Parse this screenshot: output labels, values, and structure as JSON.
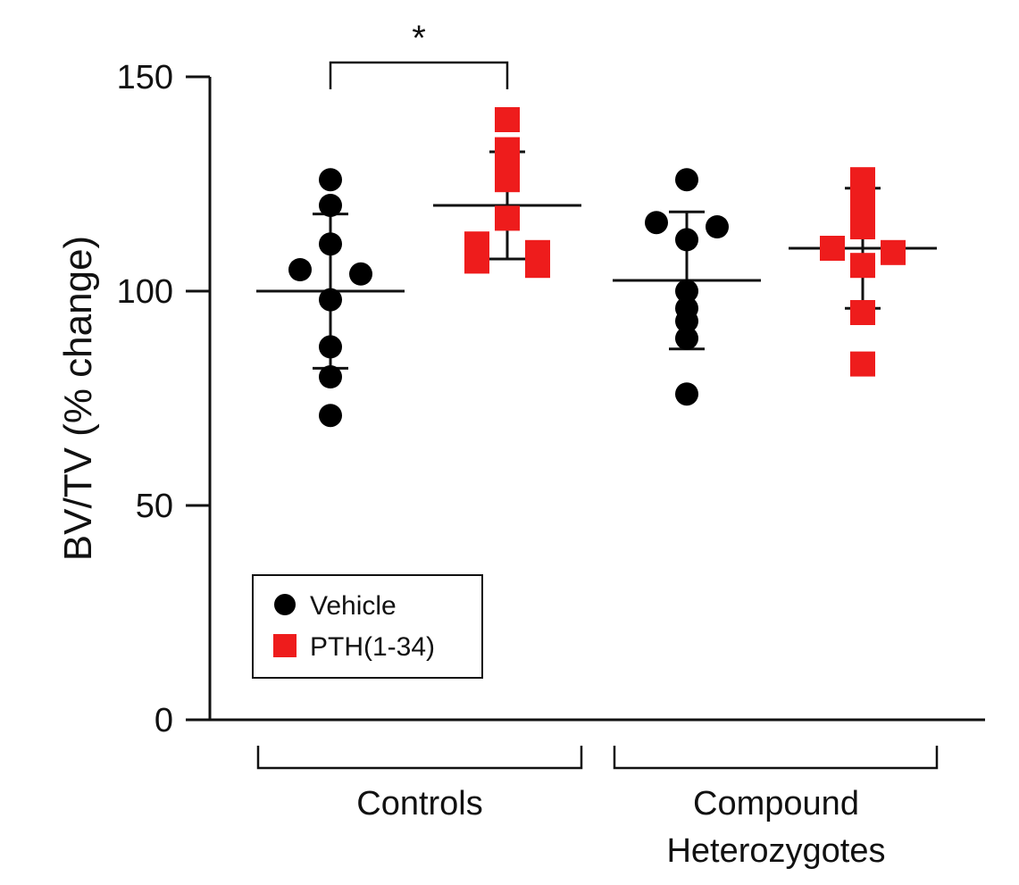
{
  "chart_data": {
    "type": "scatter",
    "title": "",
    "xlabel": "",
    "ylabel": "BV/TV (% change)",
    "ylim": [
      0,
      150
    ],
    "yticks": [
      0,
      50,
      100,
      150
    ],
    "grid": false,
    "legend_position": "bottom-left",
    "groups": [
      {
        "name": "Controls",
        "label": "Controls"
      },
      {
        "name": "Compound Heterozygotes",
        "label": "Compound Heterozygotes",
        "label_lines": [
          "Compound",
          "Heterozygotes"
        ]
      }
    ],
    "series": [
      {
        "name": "Vehicle",
        "marker": "circle",
        "color": "#000000",
        "by_group": [
          {
            "group": "Controls",
            "values": [
              126,
              120,
              111,
              105,
              104,
              98,
              87,
              80,
              71
            ],
            "mean": 100,
            "sd": 18
          },
          {
            "group": "Compound Heterozygotes",
            "values": [
              126,
              116,
              115,
              112,
              100,
              96,
              93,
              89,
              76
            ],
            "mean": 102.5,
            "sd": 16
          }
        ]
      },
      {
        "name": "PTH(1-34)",
        "marker": "square",
        "color": "#ee1c1c",
        "by_group": [
          {
            "group": "Controls",
            "values": [
              140,
              133,
              129,
              126,
              117,
              111,
              109,
              107,
              106
            ],
            "mean": 120,
            "sd": 12.5
          },
          {
            "group": "Compound Heterozygotes",
            "values": [
              126,
              123,
              120,
              115,
              110,
              109,
              106,
              95,
              83
            ],
            "mean": 110,
            "sd": 14
          }
        ]
      }
    ],
    "annotations": [
      {
        "text": "*",
        "between": [
          "Controls: Vehicle",
          "Controls: PTH(1-34)"
        ]
      }
    ]
  }
}
